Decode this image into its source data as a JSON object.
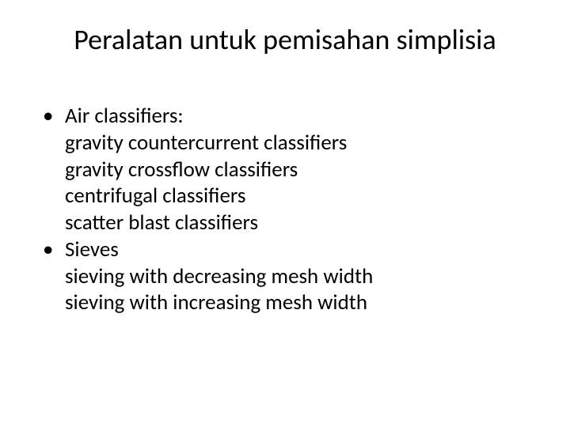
{
  "slide": {
    "title": "Peralatan untuk pemisahan simplisia",
    "title_fontsize": 36,
    "body_fontsize": 27,
    "text_color": "#000000",
    "background_color": "#ffffff",
    "bullets": [
      {
        "label": "Air classifiers:",
        "sublines": [
          "gravity countercurrent classifiers",
          "gravity crossflow classifiers",
          "centrifugal classifiers",
          "scatter blast classifiers"
        ]
      },
      {
        "label": "Sieves",
        "sublines": [
          "sieving with decreasing mesh width",
          "sieving with increasing mesh width"
        ]
      }
    ]
  }
}
